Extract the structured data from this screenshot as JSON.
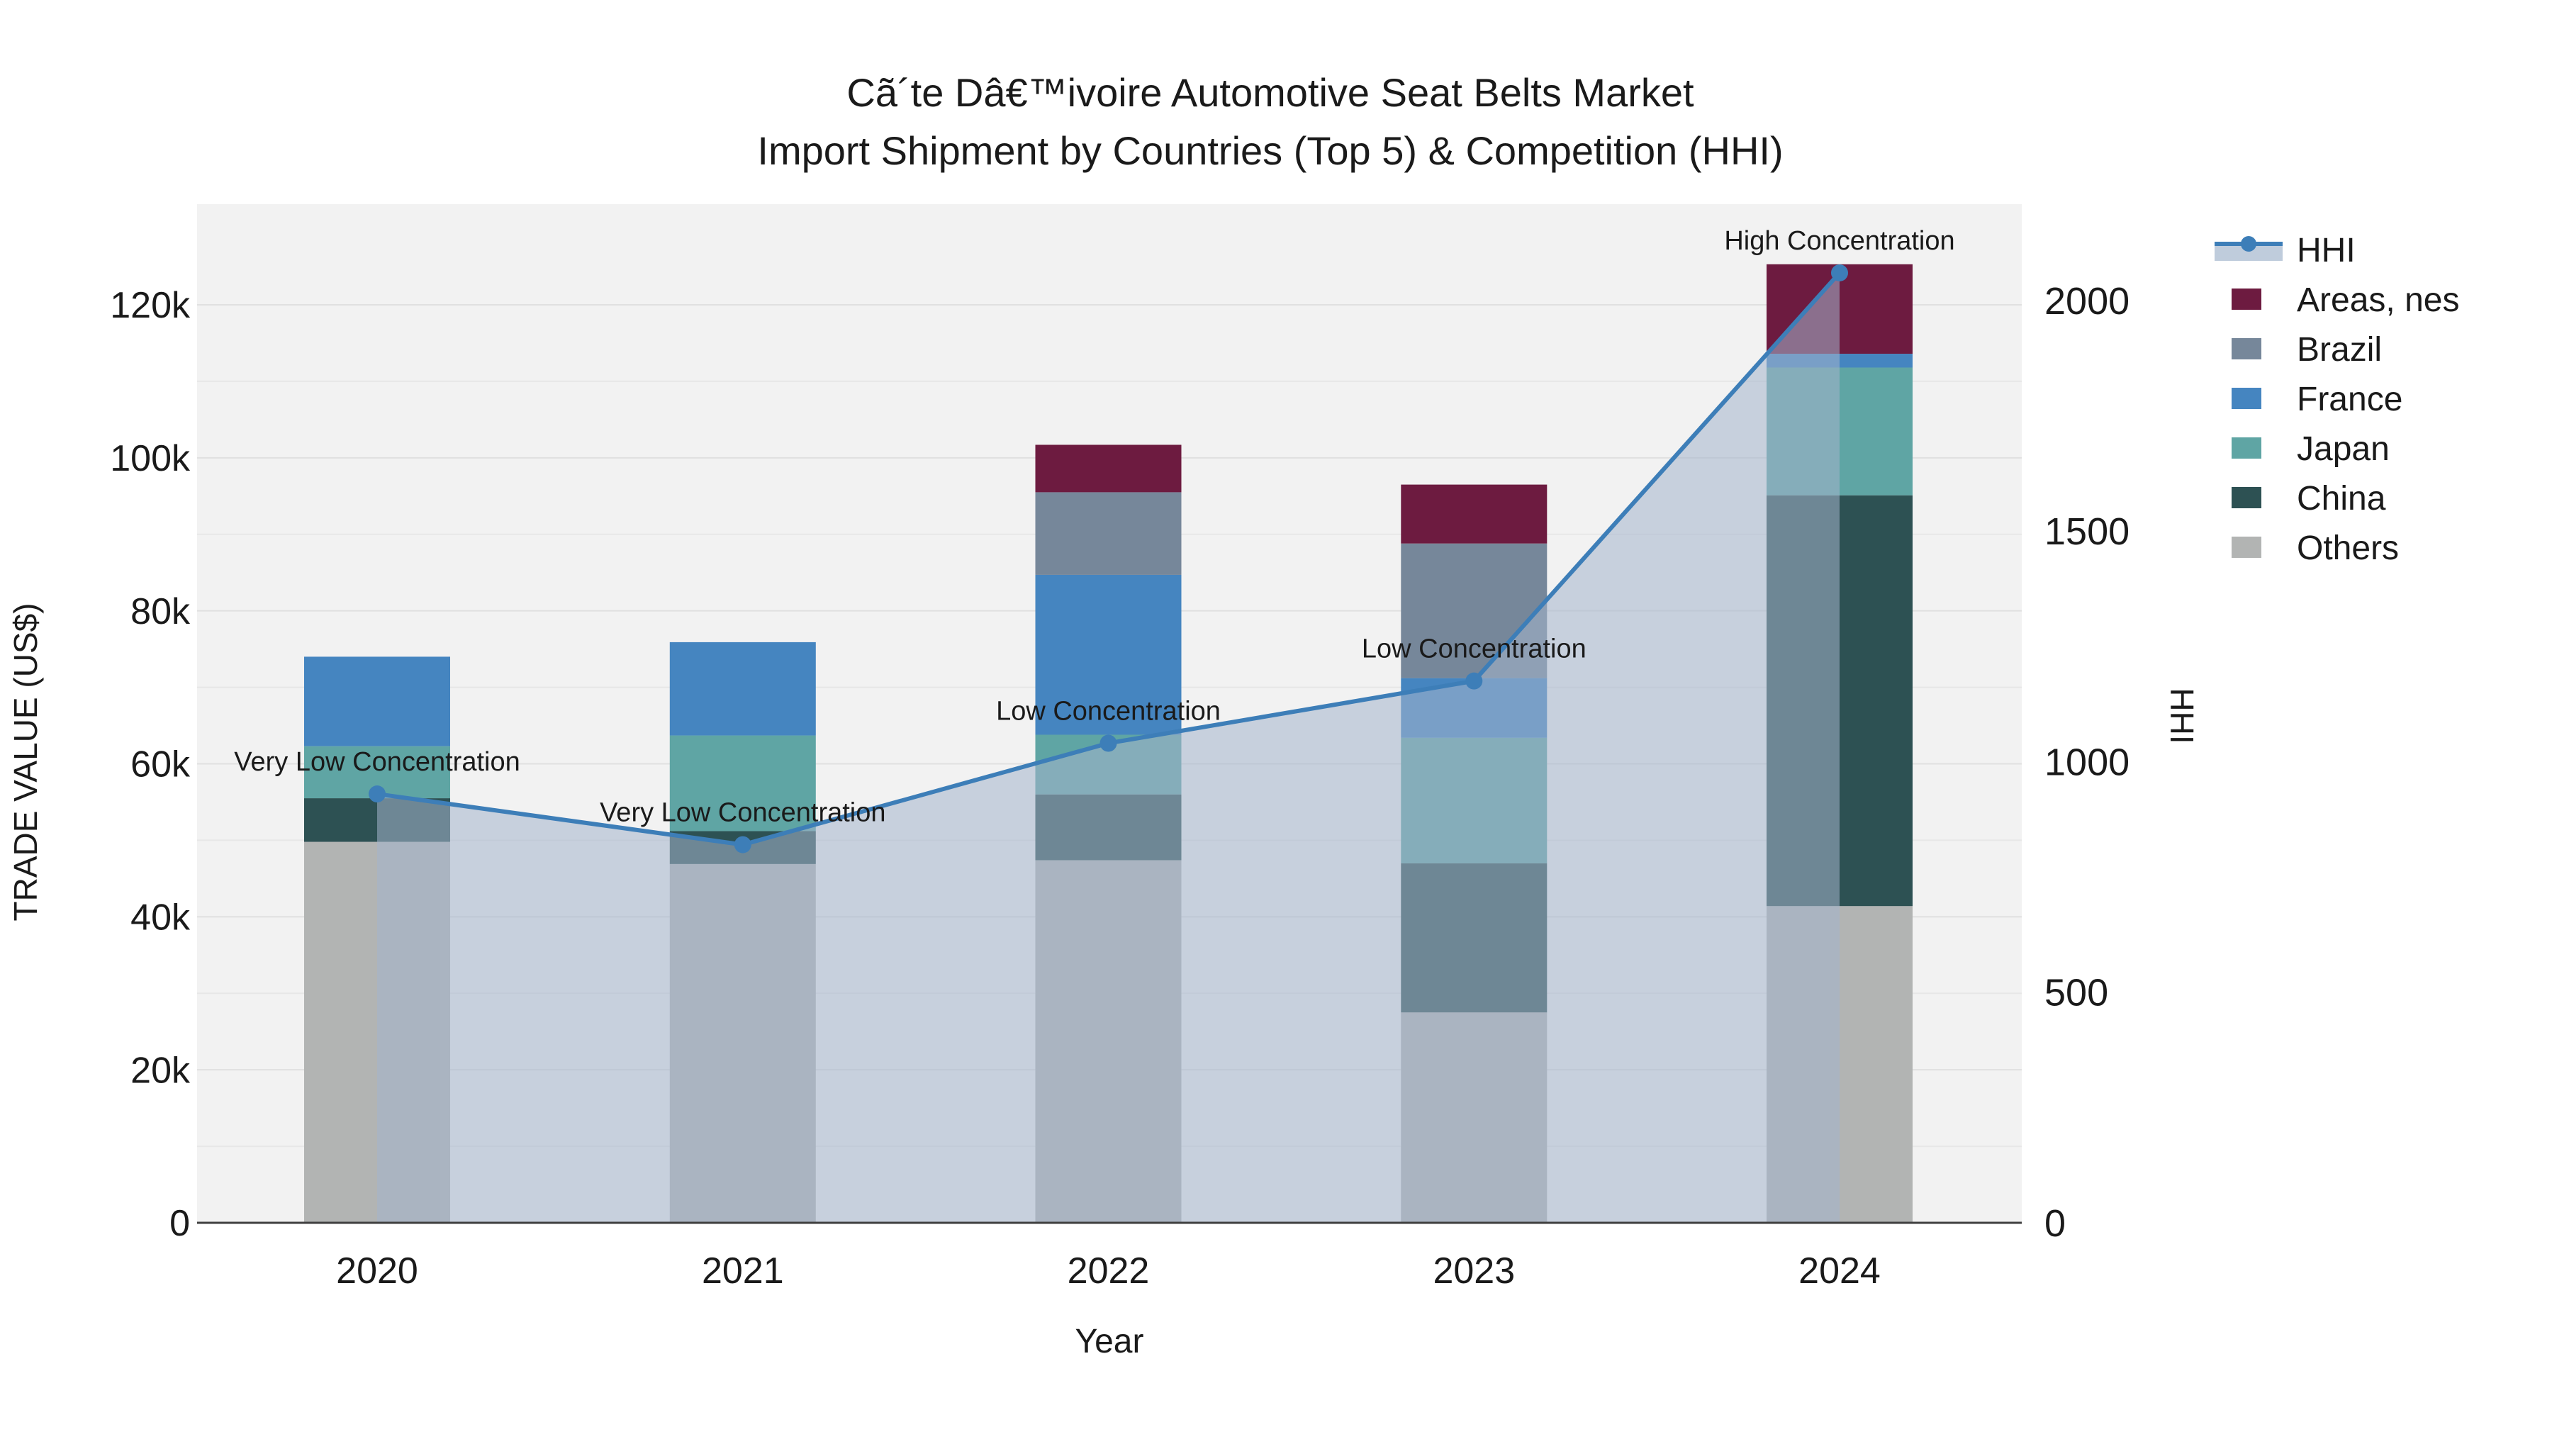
{
  "title": {
    "line1": "Cã´te Dâ€™ivoire Automotive Seat Belts Market",
    "line2": "Import Shipment by Countries (Top 5) & Competition (HHI)"
  },
  "axes": {
    "left_title": "TRADE VALUE (US$)",
    "right_title": "HHI",
    "x_title": "Year"
  },
  "legend": {
    "items": [
      {
        "label": "HHI",
        "type": "line",
        "color": "#3d7eb8",
        "band_color": "#bfccdc"
      },
      {
        "label": "Areas, nes",
        "type": "swatch",
        "color": "#6d1b40"
      },
      {
        "label": "Brazil",
        "type": "swatch",
        "color": "#76879a"
      },
      {
        "label": "France",
        "type": "swatch",
        "color": "#4585c0"
      },
      {
        "label": "Japan",
        "type": "swatch",
        "color": "#5fa5a4"
      },
      {
        "label": "China",
        "type": "swatch",
        "color": "#2d5153"
      },
      {
        "label": "Others",
        "type": "swatch",
        "color": "#b2b4b3"
      }
    ]
  },
  "chart_data": {
    "type": "stacked-bar+line",
    "title": "Cã´te Dâ€™ivoire Automotive Seat Belts Market Import Shipment by Countries (Top 5) & Competition (HHI)",
    "categories": [
      "2020",
      "2021",
      "2022",
      "2023",
      "2024"
    ],
    "bar_series": [
      {
        "name": "Others",
        "color": "#b2b4b3",
        "values": [
          49800,
          46900,
          47400,
          27500,
          41400
        ]
      },
      {
        "name": "China",
        "color": "#2d5153",
        "values": [
          5700,
          4300,
          8600,
          19500,
          53700
        ]
      },
      {
        "name": "Japan",
        "color": "#5fa5a4",
        "values": [
          6800,
          12500,
          7800,
          16400,
          16700
        ]
      },
      {
        "name": "France",
        "color": "#4585c0",
        "values": [
          11700,
          12200,
          20900,
          7800,
          1800
        ]
      },
      {
        "name": "Brazil",
        "color": "#76879a",
        "values": [
          0,
          0,
          10800,
          17600,
          0
        ]
      },
      {
        "name": "Areas, nes",
        "color": "#6d1b40",
        "values": [
          0,
          0,
          6200,
          7700,
          11700
        ]
      }
    ],
    "bar_totals": [
      74000,
      75900,
      101700,
      96500,
      125300
    ],
    "line_series": {
      "name": "HHI",
      "color": "#3d7eb8",
      "fill_color": "rgba(164,181,204,0.55)",
      "values": [
        930,
        820,
        1040,
        1175,
        2060
      ]
    },
    "annotations": [
      "Very Low Concentration",
      "Very Low Concentration",
      "Low Concentration",
      "Low Concentration",
      "High Concentration"
    ],
    "y_left": {
      "label": "TRADE VALUE (US$)",
      "tick_labels": [
        "0",
        "20k",
        "40k",
        "60k",
        "80k",
        "100k",
        "120k"
      ],
      "tick_values": [
        0,
        20000,
        40000,
        60000,
        80000,
        100000,
        120000
      ],
      "range": [
        0,
        133000
      ]
    },
    "y_right": {
      "label": "HHI",
      "tick_labels": [
        "0",
        "500",
        "1000",
        "1500",
        "2000"
      ],
      "tick_values": [
        0,
        500,
        1000,
        1500,
        2000
      ],
      "range": [
        0,
        2210
      ]
    },
    "x_label": "Year",
    "legend_position": "right",
    "grid": true,
    "plot_bg": "#f2f2f2",
    "grid_color": "#e7e7e7",
    "grid_color_major": "#e0e0e0",
    "axis_line_color": "#3f3f3f"
  }
}
